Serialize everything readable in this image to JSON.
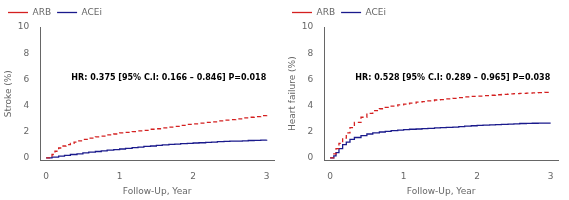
{
  "chart_data": [
    {
      "type": "step",
      "x_label": "Follow-Up, Year",
      "y_label": "Stroke (%)",
      "annotation": "HR: 0.375 [95% C.I: 0.166 – 0.846] P=0.018",
      "xlim": [
        -0.08,
        3.1
      ],
      "xticks": [
        0,
        1,
        2,
        3
      ],
      "ylim": [
        -0.2,
        10
      ],
      "yticks": [
        0,
        2,
        4,
        6,
        8,
        10
      ],
      "grid": false,
      "legend": "upper left",
      "series": [
        {
          "name": "ARB",
          "color": "#d42020",
          "line_style": "dashed",
          "x": [
            0,
            0.08,
            0.12,
            0.17,
            0.22,
            0.27,
            0.33,
            0.38,
            0.42,
            0.5,
            0.58,
            0.67,
            0.75,
            0.83,
            0.92,
            1.0,
            1.08,
            1.17,
            1.25,
            1.33,
            1.42,
            1.5,
            1.58,
            1.67,
            1.75,
            1.83,
            1.92,
            2.0,
            2.08,
            2.17,
            2.25,
            2.33,
            2.42,
            2.5,
            2.58,
            2.67,
            2.75,
            2.83,
            2.92,
            3.0
          ],
          "values": [
            0,
            0.25,
            0.5,
            0.75,
            0.9,
            1.0,
            1.1,
            1.2,
            1.3,
            1.4,
            1.5,
            1.6,
            1.65,
            1.75,
            1.82,
            1.9,
            1.95,
            2.0,
            2.05,
            2.1,
            2.18,
            2.22,
            2.28,
            2.35,
            2.4,
            2.48,
            2.55,
            2.6,
            2.65,
            2.7,
            2.75,
            2.82,
            2.88,
            2.92,
            2.97,
            3.05,
            3.1,
            3.15,
            3.22,
            3.28
          ]
        },
        {
          "name": "ACEi",
          "color": "#1a1a8c",
          "line_style": "solid",
          "x": [
            0,
            0.08,
            0.17,
            0.25,
            0.33,
            0.42,
            0.5,
            0.58,
            0.67,
            0.75,
            0.83,
            0.92,
            1.0,
            1.08,
            1.17,
            1.25,
            1.33,
            1.42,
            1.5,
            1.58,
            1.67,
            1.75,
            1.83,
            1.92,
            2.0,
            2.08,
            2.17,
            2.25,
            2.33,
            2.42,
            2.5,
            2.58,
            2.67,
            2.75,
            2.83,
            2.92,
            3.0
          ],
          "values": [
            0,
            0.05,
            0.12,
            0.18,
            0.25,
            0.3,
            0.38,
            0.43,
            0.48,
            0.53,
            0.58,
            0.62,
            0.67,
            0.72,
            0.77,
            0.82,
            0.87,
            0.9,
            0.95,
            0.98,
            1.02,
            1.05,
            1.08,
            1.1,
            1.13,
            1.15,
            1.18,
            1.2,
            1.23,
            1.25,
            1.27,
            1.28,
            1.3,
            1.32,
            1.33,
            1.35,
            1.37
          ]
        }
      ]
    },
    {
      "type": "step",
      "x_label": "Follow-Up, Year",
      "y_label": "Heart failure (%)",
      "annotation": "HR: 0.528 [95% C.I: 0.289 – 0.965] P=0.038",
      "xlim": [
        -0.08,
        3.1
      ],
      "xticks": [
        0,
        1,
        2,
        3
      ],
      "ylim": [
        -0.2,
        10
      ],
      "yticks": [
        0,
        2,
        4,
        6,
        8,
        10
      ],
      "grid": false,
      "legend": "upper left",
      "series": [
        {
          "name": "ARB",
          "color": "#d42020",
          "line_style": "dashed",
          "x": [
            0,
            0.05,
            0.08,
            0.12,
            0.17,
            0.22,
            0.27,
            0.33,
            0.42,
            0.5,
            0.58,
            0.67,
            0.75,
            0.83,
            0.92,
            1.0,
            1.08,
            1.17,
            1.25,
            1.33,
            1.42,
            1.5,
            1.58,
            1.67,
            1.75,
            1.83,
            1.92,
            2.0,
            2.08,
            2.17,
            2.25,
            2.33,
            2.42,
            2.5,
            2.58,
            2.67,
            2.75,
            2.83,
            2.92,
            3.0
          ],
          "values": [
            0,
            0.3,
            0.7,
            1.1,
            1.5,
            1.9,
            2.3,
            2.7,
            3.1,
            3.4,
            3.6,
            3.75,
            3.85,
            3.95,
            4.05,
            4.1,
            4.18,
            4.25,
            4.3,
            4.35,
            4.42,
            4.45,
            4.5,
            4.55,
            4.6,
            4.65,
            4.7,
            4.72,
            4.75,
            4.78,
            4.82,
            4.85,
            4.88,
            4.9,
            4.93,
            4.95,
            4.97,
            4.98,
            5.0,
            5.0
          ]
        },
        {
          "name": "ACEi",
          "color": "#1a1a8c",
          "line_style": "solid",
          "x": [
            0,
            0.05,
            0.08,
            0.12,
            0.17,
            0.22,
            0.27,
            0.33,
            0.42,
            0.5,
            0.58,
            0.67,
            0.75,
            0.83,
            0.92,
            1.0,
            1.08,
            1.17,
            1.25,
            1.33,
            1.42,
            1.5,
            1.58,
            1.67,
            1.75,
            1.83,
            1.92,
            2.0,
            2.08,
            2.17,
            2.25,
            2.33,
            2.42,
            2.5,
            2.58,
            2.67,
            2.75,
            2.83,
            2.92,
            3.0
          ],
          "values": [
            0,
            0.15,
            0.4,
            0.7,
            1.0,
            1.2,
            1.4,
            1.55,
            1.7,
            1.82,
            1.9,
            1.97,
            2.02,
            2.07,
            2.12,
            2.15,
            2.18,
            2.2,
            2.23,
            2.25,
            2.28,
            2.3,
            2.33,
            2.35,
            2.38,
            2.42,
            2.45,
            2.48,
            2.5,
            2.52,
            2.54,
            2.56,
            2.58,
            2.6,
            2.62,
            2.63,
            2.64,
            2.65,
            2.65,
            2.65
          ]
        }
      ]
    }
  ]
}
